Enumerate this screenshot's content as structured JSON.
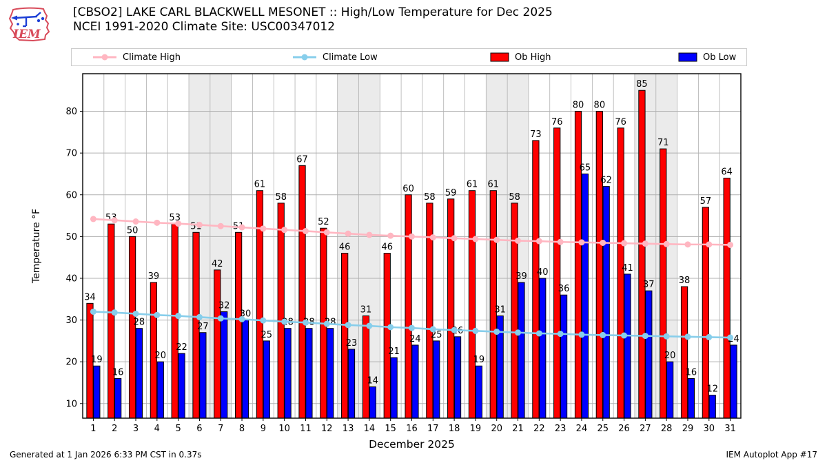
{
  "header": {
    "title_line1": "[CBSO2] LAKE CARL BLACKWELL MESONET :: High/Low Temperature for Dec 2025",
    "title_line2": "NCEI 1991-2020 Climate Site: USC00347012",
    "logo_text": "IEM"
  },
  "legend": {
    "items": [
      {
        "label": "Climate High",
        "type": "line",
        "color": "#ffb6c1"
      },
      {
        "label": "Climate Low",
        "type": "line",
        "color": "#87ceeb"
      },
      {
        "label": "Ob High",
        "type": "patch",
        "color": "#ff0000"
      },
      {
        "label": "Ob Low",
        "type": "patch",
        "color": "#0000ff"
      }
    ]
  },
  "footer": {
    "left": "Generated at 1 Jan 2026 6:33 PM CST in 0.37s",
    "right": "IEM Autoplot App #17"
  },
  "colors": {
    "weekend_band": "#ebebeb",
    "grid": "#b0b0b0",
    "axis": "#000000",
    "legend_border": "#cccccc",
    "logo_red": "#d84b5a",
    "logo_blue": "#1d3fd6"
  },
  "chart_data": {
    "type": "bar",
    "title": "[CBSO2] LAKE CARL BLACKWELL MESONET :: High/Low Temperature for Dec 2025",
    "subtitle": "NCEI 1991-2020 Climate Site: USC00347012",
    "xlabel": "December 2025",
    "ylabel": "Temperature °F",
    "x": [
      1,
      2,
      3,
      4,
      5,
      6,
      7,
      8,
      9,
      10,
      11,
      12,
      13,
      14,
      15,
      16,
      17,
      18,
      19,
      20,
      21,
      22,
      23,
      24,
      25,
      26,
      27,
      28,
      29,
      30,
      31
    ],
    "series": [
      {
        "name": "Ob High",
        "type": "bar",
        "color": "#ff0000",
        "labeled": true,
        "values": [
          34,
          53,
          50,
          39,
          53,
          51,
          42,
          51,
          61,
          58,
          67,
          52,
          46,
          31,
          46,
          60,
          58,
          59,
          61,
          61,
          58,
          73,
          76,
          80,
          80,
          76,
          85,
          71,
          38,
          57,
          64
        ]
      },
      {
        "name": "Ob Low",
        "type": "bar",
        "color": "#0000ff",
        "labeled": true,
        "values": [
          19,
          16,
          28,
          20,
          22,
          27,
          32,
          30,
          25,
          28,
          28,
          28,
          23,
          14,
          21,
          24,
          25,
          26,
          19,
          31,
          39,
          40,
          36,
          65,
          62,
          41,
          37,
          20,
          16,
          12,
          24
        ]
      },
      {
        "name": "Climate High",
        "type": "line",
        "color": "#ffb6c1",
        "labeled": false,
        "values": [
          54.2,
          53.9,
          53.6,
          53.3,
          53.1,
          52.8,
          52.5,
          52.2,
          51.9,
          51.6,
          51.3,
          51.0,
          50.7,
          50.4,
          50.2,
          50.0,
          49.8,
          49.6,
          49.4,
          49.2,
          49.0,
          48.9,
          48.7,
          48.6,
          48.5,
          48.4,
          48.3,
          48.2,
          48.1,
          48.1,
          48.0
        ]
      },
      {
        "name": "Climate Low",
        "type": "line",
        "color": "#87ceeb",
        "labeled": false,
        "values": [
          32.0,
          31.8,
          31.5,
          31.2,
          31.0,
          30.7,
          30.4,
          30.2,
          29.9,
          29.6,
          29.4,
          29.1,
          28.8,
          28.6,
          28.3,
          28.1,
          27.8,
          27.6,
          27.4,
          27.2,
          27.0,
          26.8,
          26.7,
          26.5,
          26.4,
          26.3,
          26.2,
          26.1,
          26.0,
          25.9,
          25.8
        ]
      }
    ],
    "ylim": [
      6.5,
      89
    ],
    "yticks": [
      10,
      20,
      30,
      40,
      50,
      60,
      70,
      80
    ],
    "weekend_bands": [
      [
        6,
        7
      ],
      [
        13,
        14
      ],
      [
        20,
        21
      ],
      [
        27,
        28
      ]
    ],
    "grid": true,
    "legend_position": "top"
  }
}
